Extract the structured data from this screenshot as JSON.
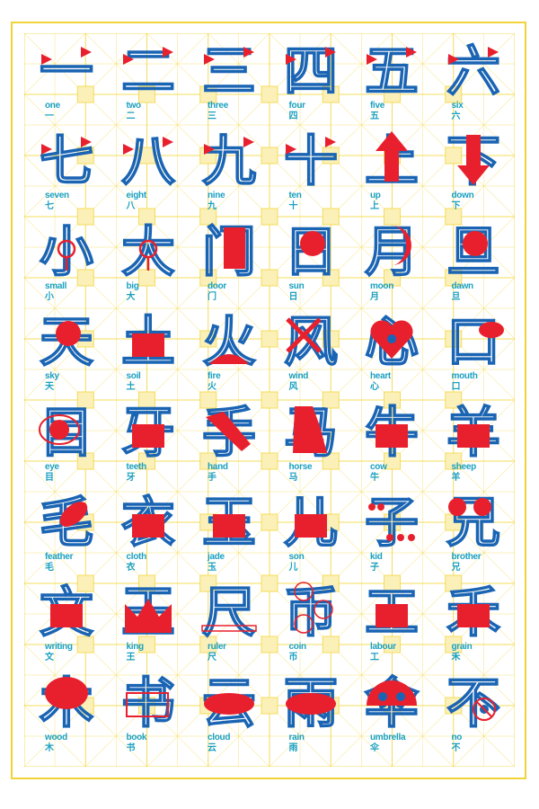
{
  "colors": {
    "border": "#f2d43a",
    "grid": "#f4dc5a",
    "label": "#1aa0c0",
    "blue": "#1a64b4",
    "red": "#e8202e"
  },
  "cells": [
    {
      "en": "one",
      "zh": "一",
      "accent": "triangle"
    },
    {
      "en": "two",
      "zh": "二",
      "accent": "triangle"
    },
    {
      "en": "three",
      "zh": "三",
      "accent": "triangle"
    },
    {
      "en": "four",
      "zh": "四",
      "accent": "triangle"
    },
    {
      "en": "five",
      "zh": "五",
      "accent": "triangle"
    },
    {
      "en": "six",
      "zh": "六",
      "accent": "triangle"
    },
    {
      "en": "seven",
      "zh": "七",
      "accent": "triangle"
    },
    {
      "en": "eight",
      "zh": "八",
      "accent": "triangle"
    },
    {
      "en": "nine",
      "zh": "九",
      "accent": "triangle"
    },
    {
      "en": "ten",
      "zh": "十",
      "accent": "triangle"
    },
    {
      "en": "up",
      "zh": "上",
      "accent": "arrow-up"
    },
    {
      "en": "down",
      "zh": "下",
      "accent": "arrow-down"
    },
    {
      "en": "small",
      "zh": "小",
      "accent": "magnifier"
    },
    {
      "en": "big",
      "zh": "大",
      "accent": "magnifier"
    },
    {
      "en": "door",
      "zh": "门",
      "accent": "door"
    },
    {
      "en": "sun",
      "zh": "日",
      "accent": "sun"
    },
    {
      "en": "moon",
      "zh": "月",
      "accent": "moon"
    },
    {
      "en": "dawn",
      "zh": "旦",
      "accent": "half-sun"
    },
    {
      "en": "sky",
      "zh": "天",
      "accent": "sun"
    },
    {
      "en": "soil",
      "zh": "土",
      "accent": "block"
    },
    {
      "en": "fire",
      "zh": "火",
      "accent": "flame"
    },
    {
      "en": "wind",
      "zh": "风",
      "accent": "windmill"
    },
    {
      "en": "heart",
      "zh": "心",
      "accent": "heart"
    },
    {
      "en": "mouth",
      "zh": "口",
      "accent": "lips"
    },
    {
      "en": "eye",
      "zh": "目",
      "accent": "eye"
    },
    {
      "en": "teeth",
      "zh": "牙",
      "accent": "block"
    },
    {
      "en": "hand",
      "zh": "手",
      "accent": "hand"
    },
    {
      "en": "horse",
      "zh": "马",
      "accent": "horse"
    },
    {
      "en": "cow",
      "zh": "牛",
      "accent": "circle"
    },
    {
      "en": "sheep",
      "zh": "羊",
      "accent": "circle"
    },
    {
      "en": "feather",
      "zh": "毛",
      "accent": "leaf"
    },
    {
      "en": "cloth",
      "zh": "衣",
      "accent": "block"
    },
    {
      "en": "jade",
      "zh": "玉",
      "accent": "circle"
    },
    {
      "en": "son",
      "zh": "儿",
      "accent": "circle"
    },
    {
      "en": "kid",
      "zh": "子",
      "accent": "dots"
    },
    {
      "en": "brother",
      "zh": "兄",
      "accent": "faces"
    },
    {
      "en": "writing",
      "zh": "文",
      "accent": "block"
    },
    {
      "en": "king",
      "zh": "王",
      "accent": "crown"
    },
    {
      "en": "ruler",
      "zh": "尺",
      "accent": "ruler"
    },
    {
      "en": "coin",
      "zh": "币",
      "accent": "coin"
    },
    {
      "en": "labour",
      "zh": "工",
      "accent": "block"
    },
    {
      "en": "grain",
      "zh": "禾",
      "accent": "block"
    },
    {
      "en": "wood",
      "zh": "木",
      "accent": "tree"
    },
    {
      "en": "book",
      "zh": "书",
      "accent": "book"
    },
    {
      "en": "cloud",
      "zh": "云",
      "accent": "cloud"
    },
    {
      "en": "rain",
      "zh": "雨",
      "accent": "cloud"
    },
    {
      "en": "umbrella",
      "zh": "伞",
      "accent": "umbrella"
    },
    {
      "en": "no",
      "zh": "不",
      "accent": "no-sign"
    }
  ]
}
